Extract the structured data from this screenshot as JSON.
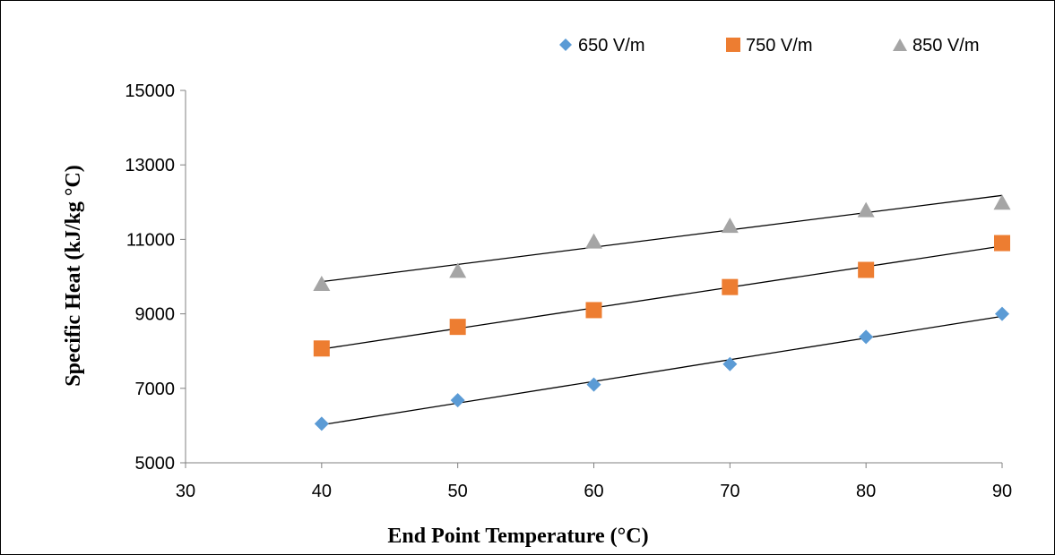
{
  "chart_data": {
    "type": "scatter",
    "title": "",
    "xlabel": "End Point Temperature (°C)",
    "ylabel": "Specific Heat (kJ/kg °C)",
    "xlim": [
      30,
      90
    ],
    "ylim": [
      5000,
      15000
    ],
    "x_ticks": [
      30,
      40,
      50,
      60,
      70,
      80,
      90
    ],
    "y_ticks": [
      5000,
      7000,
      9000,
      11000,
      13000,
      15000
    ],
    "grid": false,
    "legend_position": "top-right",
    "trendlines": "linear",
    "series": [
      {
        "name": "650 V/m",
        "marker": "diamond",
        "color": "#5B9BD5",
        "x": [
          40,
          50,
          60,
          70,
          80,
          90
        ],
        "y": [
          6050,
          6680,
          7100,
          7650,
          8380,
          9000
        ]
      },
      {
        "name": "750 V/m",
        "marker": "square",
        "color": "#ED7D31",
        "x": [
          40,
          50,
          60,
          70,
          80,
          90
        ],
        "y": [
          8070,
          8650,
          9100,
          9720,
          10180,
          10900
        ]
      },
      {
        "name": "850 V/m",
        "marker": "triangle",
        "color": "#A5A5A5",
        "x": [
          40,
          50,
          60,
          70,
          80,
          90
        ],
        "y": [
          9820,
          10170,
          10960,
          11380,
          11800,
          12000
        ]
      }
    ]
  }
}
